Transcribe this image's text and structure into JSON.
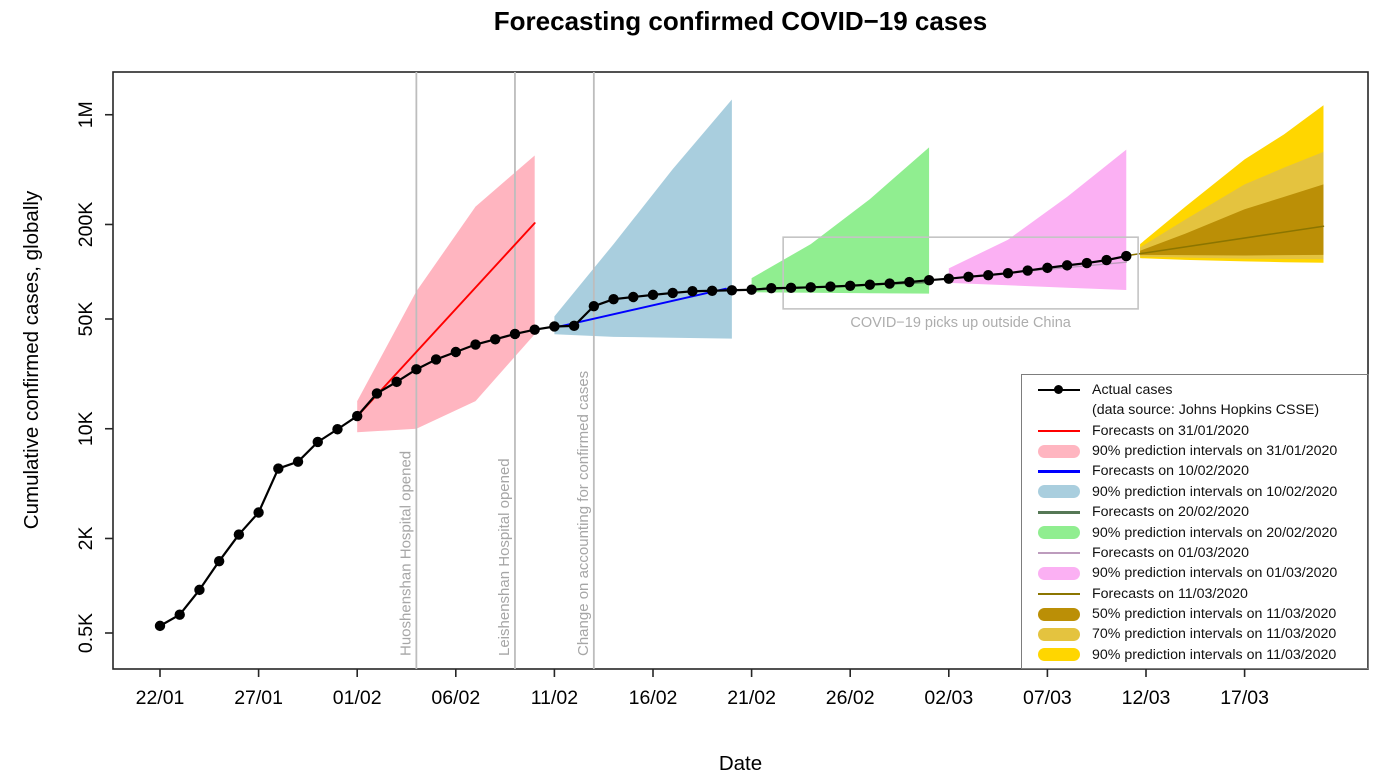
{
  "chart_data": {
    "type": "line",
    "title": "Forecasting confirmed COVID−19 cases",
    "xlabel": "Date",
    "ylabel": "Cumulative confirmed cases, globally",
    "yscale": "log",
    "grid": false,
    "xticks": [
      {
        "label": "22/01",
        "day": 0
      },
      {
        "label": "27/01",
        "day": 5
      },
      {
        "label": "01/02",
        "day": 10
      },
      {
        "label": "06/02",
        "day": 15
      },
      {
        "label": "11/02",
        "day": 20
      },
      {
        "label": "16/02",
        "day": 25
      },
      {
        "label": "21/02",
        "day": 30
      },
      {
        "label": "26/02",
        "day": 35
      },
      {
        "label": "02/03",
        "day": 40
      },
      {
        "label": "07/03",
        "day": 45
      },
      {
        "label": "12/03",
        "day": 50
      },
      {
        "label": "17/03",
        "day": 55
      }
    ],
    "yticks": [
      {
        "label": "0.5K",
        "value": 500
      },
      {
        "label": "2K",
        "value": 2000
      },
      {
        "label": "10K",
        "value": 10000
      },
      {
        "label": "50K",
        "value": 50000
      },
      {
        "label": "200K",
        "value": 200000
      },
      {
        "label": "1M",
        "value": 1000000
      }
    ],
    "actual": {
      "name": "Actual cases",
      "source": "(data source: Johns Hopkins CSSE)",
      "color": "#000000",
      "dates": [
        "22/01",
        "23/01",
        "24/01",
        "25/01",
        "26/01",
        "27/01",
        "28/01",
        "29/01",
        "30/01",
        "31/01",
        "01/02",
        "02/02",
        "03/02",
        "04/02",
        "05/02",
        "06/02",
        "07/02",
        "08/02",
        "09/02",
        "10/02",
        "11/02",
        "12/02",
        "13/02",
        "14/02",
        "15/02",
        "16/02",
        "17/02",
        "18/02",
        "19/02",
        "20/02",
        "21/02",
        "22/02",
        "23/02",
        "24/02",
        "25/02",
        "26/02",
        "27/02",
        "28/02",
        "29/02",
        "01/03",
        "02/03",
        "03/03",
        "04/03",
        "05/03",
        "06/03",
        "07/03",
        "08/03",
        "09/03",
        "10/03",
        "11/03"
      ],
      "values": [
        555,
        654,
        941,
        1434,
        2118,
        2927,
        5578,
        6166,
        8234,
        9927,
        12038,
        16787,
        19881,
        23892,
        27635,
        30817,
        34391,
        37120,
        40150,
        42762,
        44802,
        45221,
        60368,
        66885,
        69030,
        71224,
        73258,
        75136,
        75639,
        76197,
        76819,
        78572,
        78958,
        79561,
        80406,
        81388,
        82746,
        84112,
        86011,
        88369,
        90306,
        92840,
        95120,
        97882,
        101784,
        105821,
        109795,
        113561,
        118592,
        125865
      ]
    },
    "forecasts": [
      {
        "name": "Forecasts on 31/01/2020",
        "color": "#FF0000",
        "width": 1.9,
        "days": [
          10,
          19
        ],
        "values": [
          12000,
          204000
        ],
        "intervals": [
          {
            "level": "90%",
            "label": "90% prediction intervals on 31/01/2020",
            "color": "#FFB5C0",
            "days": [
              10,
              13,
              16,
              19
            ],
            "lower": [
              9500,
              10000,
              15000,
              40000
            ],
            "upper": [
              15000,
              75000,
              260000,
              550000
            ]
          }
        ]
      },
      {
        "name": "Forecasts on 10/02/2020",
        "color": "#0000FF",
        "width": 1.9,
        "days": [
          20,
          28.7
        ],
        "values": [
          44000,
          78000
        ],
        "intervals": [
          {
            "level": "90%",
            "label": "90% prediction intervals on 10/02/2020",
            "color": "#A9CEDE",
            "days": [
              20,
              23,
              26,
              29
            ],
            "lower": [
              40000,
              38500,
              38000,
              37500
            ],
            "upper": [
              52000,
              150000,
              450000,
              1250000
            ]
          }
        ]
      },
      {
        "name": "Forecasts on 20/02/2020",
        "color": "#567856",
        "width": 1.4,
        "days": [
          30,
          39
        ],
        "values": [
          76500,
          85500
        ],
        "intervals": [
          {
            "level": "90%",
            "label": "90% prediction intervals on 20/02/2020",
            "color": "#90EE90",
            "days": [
              30,
              33,
              36,
              39
            ],
            "lower": [
              74000,
              73500,
              73000,
              72500
            ],
            "upper": [
              91000,
              150000,
              290000,
              620000
            ]
          }
        ]
      },
      {
        "name": "Forecasts on 01/03/2020",
        "color": "#BD9CBD",
        "width": 1.4,
        "days": [
          39,
          49
        ],
        "values": [
          88500,
          115000
        ],
        "intervals": [
          {
            "level": "90%",
            "label": "90% prediction intervals on 01/03/2020",
            "color": "#FBB0F3",
            "days": [
              40,
              43,
              46,
              49
            ],
            "lower": [
              85000,
              82000,
              79000,
              76500
            ],
            "upper": [
              105000,
              160000,
              300000,
              600000
            ]
          }
        ]
      },
      {
        "name": "Forecasts on 11/03/2020",
        "color": "#8B7500",
        "width": 1.5,
        "days": [
          49,
          59
        ],
        "values": [
          126500,
          195000
        ],
        "intervals": [
          {
            "level": "90%",
            "label": "90% prediction intervals on 11/03/2020",
            "color": "#FFD600",
            "days": [
              49.7,
              52,
              55,
              57,
              59
            ],
            "lower": [
              122000,
              119000,
              116500,
              115000,
              114000
            ],
            "upper": [
              150000,
              260000,
              520000,
              750000,
              1150000
            ]
          },
          {
            "level": "70%",
            "label": "70% prediction intervals on 11/03/2020",
            "color": "#E4C33F",
            "days": [
              49.7,
              52,
              55,
              57,
              59
            ],
            "lower": [
              125000,
              123000,
              121000,
              120500,
              120000
            ],
            "upper": [
              143000,
              215000,
              360000,
              460000,
              580000
            ]
          },
          {
            "level": "50%",
            "label": "50% prediction intervals on 11/03/2020",
            "color": "#BB8F06",
            "days": [
              49.7,
              52,
              55,
              57,
              59
            ],
            "lower": [
              128000,
              127500,
              127000,
              127500,
              128000
            ],
            "upper": [
              136000,
              175000,
              250000,
              300000,
              360000
            ]
          }
        ]
      }
    ],
    "events": [
      {
        "label": "Huoshenshan Hospital opened",
        "day": 13
      },
      {
        "label": "Leishenshan Hospital opened",
        "day": 18
      },
      {
        "label": "Change on accounting for confirmed cases",
        "day": 22
      }
    ],
    "annotation": {
      "label": "COVID−19 picks up outside China",
      "day_start": 31.6,
      "day_end": 49.6,
      "value_top": 166000,
      "value_bottom": 58000
    }
  },
  "legend": {
    "items": [
      {
        "swatch": "point-line",
        "color": "#000000",
        "label": "Actual cases"
      },
      {
        "swatch": "none",
        "color": "",
        "label": "(data source: Johns Hopkins CSSE)"
      },
      {
        "swatch": "line",
        "color": "#FF0000",
        "label": "Forecasts on 31/01/2020"
      },
      {
        "swatch": "band",
        "color": "#FFB5C0",
        "label": "90% prediction intervals on 31/01/2020"
      },
      {
        "swatch": "line",
        "color": "#0000FF",
        "label": "Forecasts on 10/02/2020"
      },
      {
        "swatch": "band",
        "color": "#A9CEDE",
        "label": "90% prediction intervals on 10/02/2020"
      },
      {
        "swatch": "line",
        "color": "#567856",
        "label": "Forecasts on 20/02/2020"
      },
      {
        "swatch": "band",
        "color": "#90EE90",
        "label": "90% prediction intervals on 20/02/2020"
      },
      {
        "swatch": "line",
        "color": "#BD9CBD",
        "label": "Forecasts on 01/03/2020"
      },
      {
        "swatch": "band",
        "color": "#FBB0F3",
        "label": "90% prediction intervals on 01/03/2020"
      },
      {
        "swatch": "line",
        "color": "#8B7500",
        "label": "Forecasts on 11/03/2020"
      },
      {
        "swatch": "band",
        "color": "#BB8F06",
        "label": "50% prediction intervals on 11/03/2020"
      },
      {
        "swatch": "band",
        "color": "#E4C33F",
        "label": "70% prediction intervals on 11/03/2020"
      },
      {
        "swatch": "band",
        "color": "#FFD600",
        "label": "90% prediction intervals on 11/03/2020"
      }
    ]
  }
}
